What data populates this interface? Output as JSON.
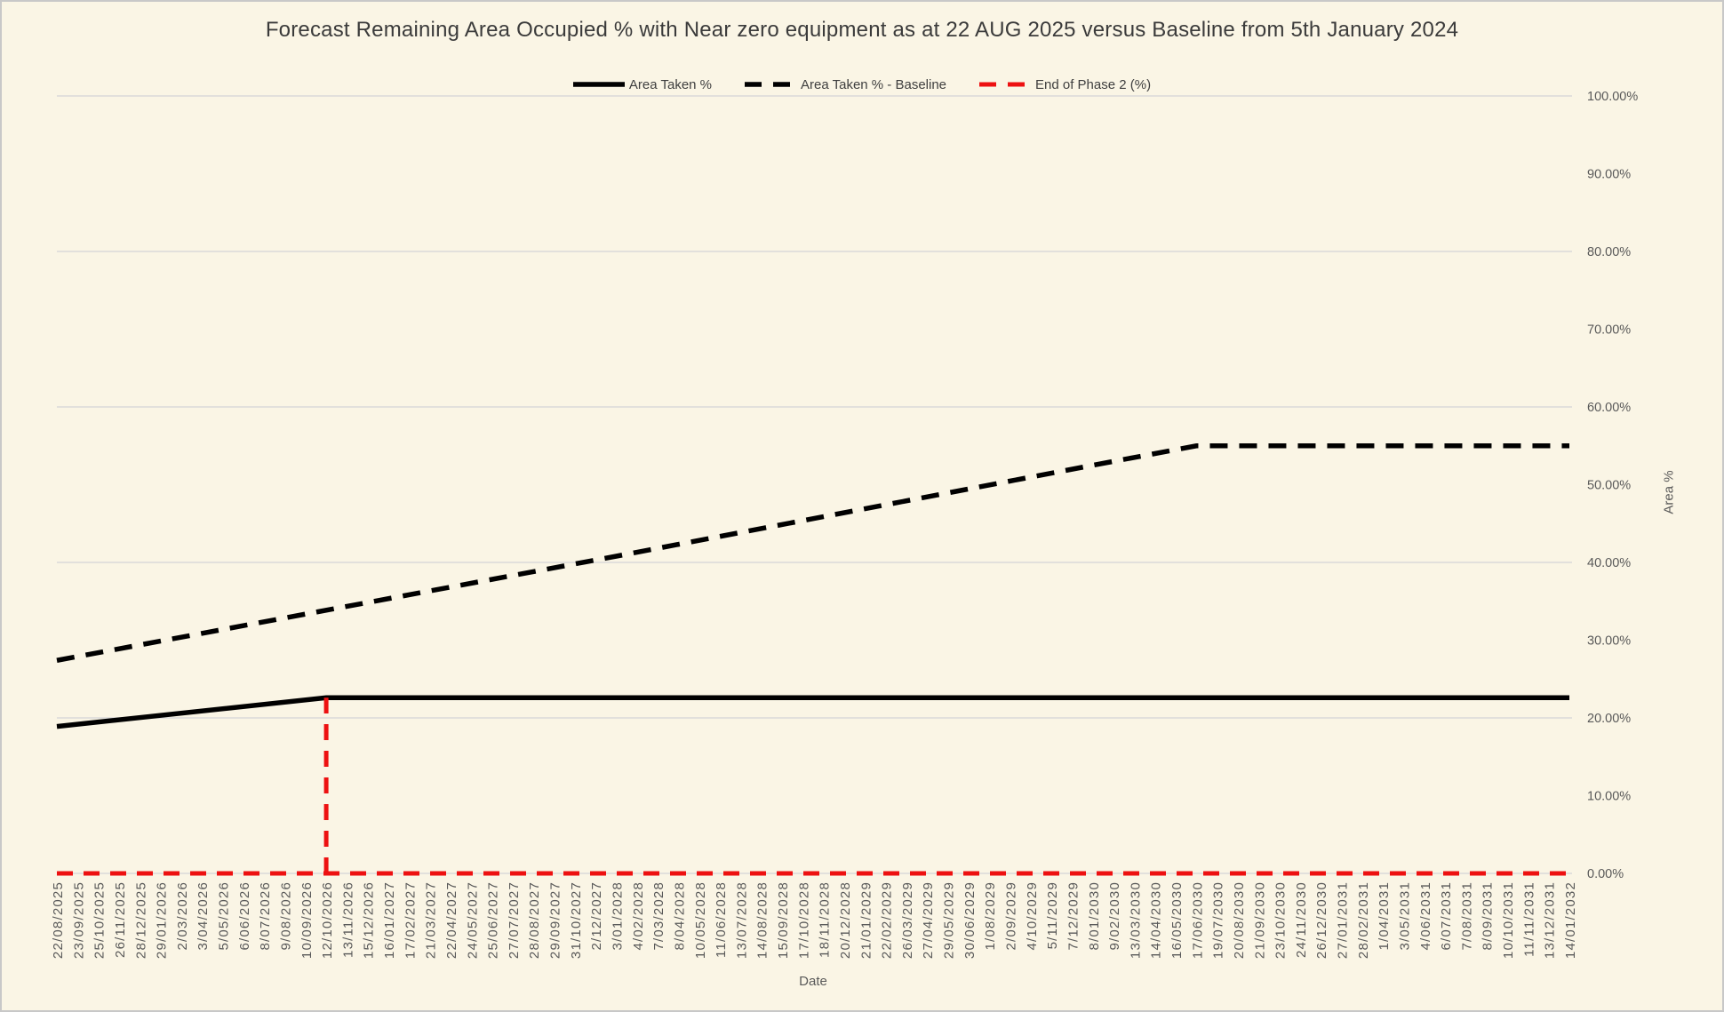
{
  "styling": {
    "background": "#FAF5E5",
    "frame_border": "#C8C8C8",
    "gridline": "#D9D9D9",
    "tick_label_color": "#595959",
    "title_color": "#3B3B3B",
    "legend_text_color": "#3F3F3F",
    "series_black": "#000000",
    "series_red": "#ED1111"
  },
  "chart_data": {
    "type": "line",
    "title": "Forecast Remaining Area Occupied % with Near zero equipment as at 22 AUG 2025 versus Baseline from 5th January 2024",
    "xlabel": "Date",
    "ylabel": "Area %",
    "legend_position": "top",
    "ylim": [
      0,
      100
    ],
    "y_tick_step": 10,
    "y_tick_labels": [
      "0.00%",
      "10.00%",
      "20.00%",
      "30.00%",
      "40.00%",
      "50.00%",
      "60.00%",
      "70.00%",
      "80.00%",
      "90.00%",
      "100.00%"
    ],
    "y_gridlines": [
      0,
      20,
      40,
      60,
      80,
      100
    ],
    "categories": [
      "22/08/2025",
      "23/09/2025",
      "25/10/2025",
      "26/11/2025",
      "28/12/2025",
      "29/01/2026",
      "2/03/2026",
      "3/04/2026",
      "5/05/2026",
      "6/06/2026",
      "8/07/2026",
      "9/08/2026",
      "10/09/2026",
      "12/10/2026",
      "13/11/2026",
      "15/12/2026",
      "16/01/2027",
      "17/02/2027",
      "21/03/2027",
      "22/04/2027",
      "24/05/2027",
      "25/06/2027",
      "27/07/2027",
      "28/08/2027",
      "29/09/2027",
      "31/10/2027",
      "2/12/2027",
      "3/01/2028",
      "4/02/2028",
      "7/03/2028",
      "8/04/2028",
      "10/05/2028",
      "11/06/2028",
      "13/07/2028",
      "14/08/2028",
      "15/09/2028",
      "17/10/2028",
      "18/11/2028",
      "20/12/2028",
      "21/01/2029",
      "22/02/2029",
      "26/03/2029",
      "27/04/2029",
      "29/05/2029",
      "30/06/2029",
      "1/08/2029",
      "2/09/2029",
      "4/10/2029",
      "5/11/2029",
      "7/12/2029",
      "8/01/2030",
      "9/02/2030",
      "13/03/2030",
      "14/04/2030",
      "16/05/2030",
      "17/06/2030",
      "19/07/2030",
      "20/08/2030",
      "21/09/2030",
      "23/10/2030",
      "24/11/2030",
      "26/12/2030",
      "27/01/2031",
      "28/02/2031",
      "1/04/2031",
      "3/05/2031",
      "4/06/2031",
      "6/07/2031",
      "7/08/2031",
      "8/09/2031",
      "10/10/2031",
      "11/11/2031",
      "13/12/2031",
      "14/01/2032"
    ],
    "series": [
      {
        "name": "Area Taken %",
        "color": "#000000",
        "dash": "solid",
        "stroke_width": 5.5,
        "keypoints": [
          {
            "index": 0,
            "category": "22/08/2025",
            "value": 18.9
          },
          {
            "index": 13,
            "category": "12/10/2026",
            "value": 22.6
          },
          {
            "index": 73,
            "category": "14/01/2032",
            "value": 22.6
          }
        ]
      },
      {
        "name": "Area Taken % - Baseline",
        "color": "#000000",
        "dash": "dashed",
        "stroke_width": 5.5,
        "keypoints": [
          {
            "index": 0,
            "category": "22/08/2025",
            "value": 27.4
          },
          {
            "index": 27,
            "category": "3/01/2028",
            "value": 40.8
          },
          {
            "index": 50,
            "category": "8/01/2030",
            "value": 52.5
          },
          {
            "index": 55,
            "category": "17/06/2030",
            "value": 55.0
          },
          {
            "index": 73,
            "category": "14/01/2032",
            "value": 55.0
          }
        ]
      },
      {
        "name": "End of Phase 2 (%)",
        "color": "#ED1111",
        "dash": "dashed",
        "stroke_width": 5,
        "type": "baseline_spike",
        "base_value": 0,
        "spike": {
          "index": 13,
          "category": "12/10/2026",
          "value": 22.6
        },
        "keypoints": [
          {
            "index": 0,
            "category": "22/08/2025",
            "value": 0
          },
          {
            "index": 13,
            "category": "12/10/2026",
            "value": 22.6
          },
          {
            "index": 73,
            "category": "14/01/2032",
            "value": 0
          }
        ]
      }
    ]
  }
}
